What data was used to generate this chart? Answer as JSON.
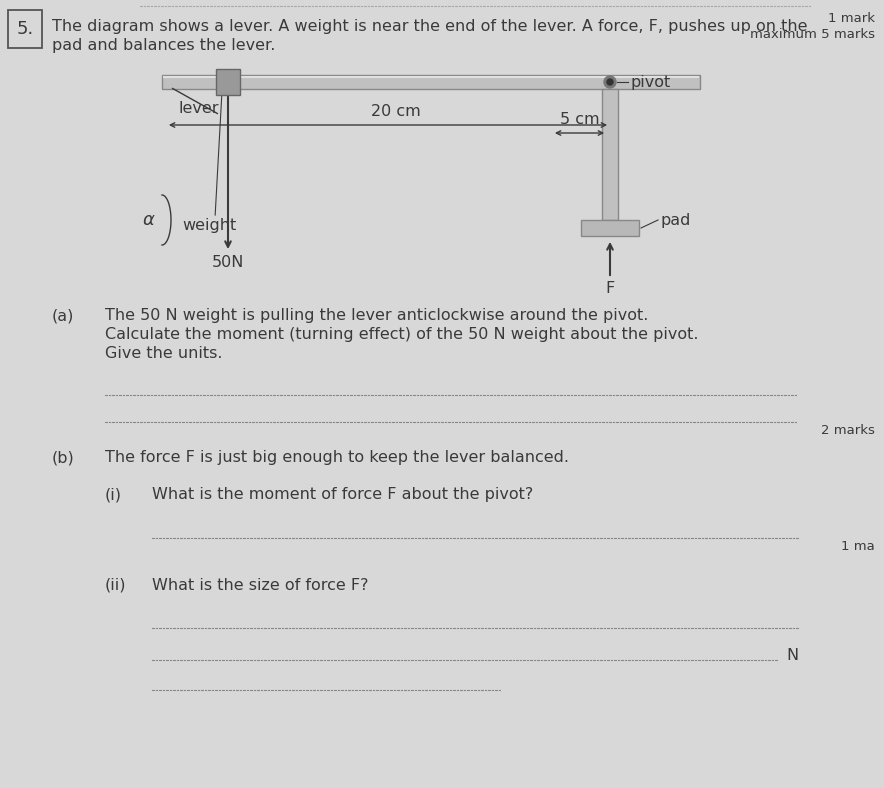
{
  "bg_color": "#d8d8d8",
  "title_num": "5.",
  "top_text_line1": "The diagram shows a lever. A weight is near the end of the lever. A force, F, pushes up on the",
  "top_text_line2": "pad and balances the lever.",
  "marks_line1": "1 mark",
  "marks_line2": "maximum 5 marks",
  "label_lever": "lever",
  "label_20cm": "20 cm",
  "label_5cm": "5 cm",
  "label_pivot": "pivot",
  "label_pad": "pad",
  "label_weight": "weight",
  "label_50N": "50N",
  "label_F": "F",
  "label_alpha": "α",
  "section_a_label": "(a)",
  "section_a_line1": "The 50 N weight is pulling the lever anticlockwise around the pivot.",
  "section_a_line2": "Calculate the moment (turning effect) of the 50 N weight about the pivot.",
  "section_a_line3": "Give the units.",
  "section_b_label": "(b)",
  "section_b_text": "The force F is just big enough to keep the lever balanced.",
  "section_bi_label": "(i)",
  "section_bi_text": "What is the moment of force F about the pivot?",
  "section_bii_label": "(ii)",
  "section_bii_text": "What is the size of force F?",
  "marks_a": "2 marks",
  "marks_bi": "1 ma",
  "suffix_N": "N",
  "text_color": "#3a3a3a",
  "lever_color": "#b8b8b8",
  "box_color": "#909090",
  "dot_color": "#888888"
}
